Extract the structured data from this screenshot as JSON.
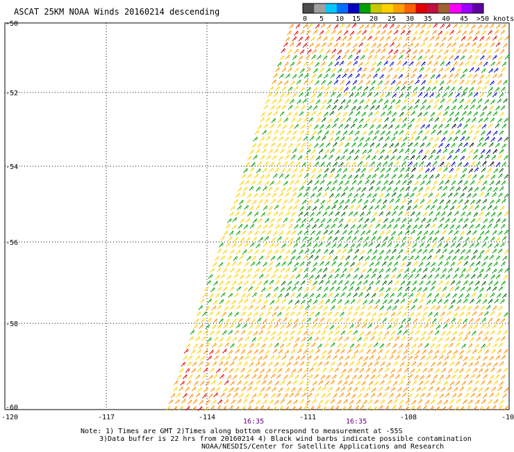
{
  "title": "ASCAT 25KM NOAA Winds 20160214 descending",
  "legend": {
    "labels": [
      "0",
      "5",
      "10",
      "15",
      "20",
      "25",
      "30",
      "35",
      "40",
      "45",
      ">50 knots"
    ],
    "colors": [
      "#4d4d4d",
      "#a0a0a0",
      "#00c8ff",
      "#0070ff",
      "#0000c0",
      "#00a000",
      "#c8c800",
      "#ffd000",
      "#ffa000",
      "#ff6000",
      "#e00000",
      "#c01040",
      "#a06030",
      "#ff00ff",
      "#a000ff",
      "#6000a0"
    ]
  },
  "axes": {
    "lat_labels": [
      "-50",
      "-52",
      "-54",
      "-56",
      "-58",
      "-60"
    ],
    "lon_labels": [
      "-120",
      "-117",
      "-114",
      "-111",
      "-108",
      "-10"
    ]
  },
  "times": [
    "16:35",
    "16:35"
  ],
  "notes": {
    "line1": "Note: 1) Times are GMT 2)Times along bottom correspond to measurement at -55S",
    "line2": "3)Data buffer is 22 hrs from 20160214 4) Black wind barbs indicate possible contamination",
    "line3": "NOAA/NESDIS/Center for Satellite Applications and Research"
  }
}
